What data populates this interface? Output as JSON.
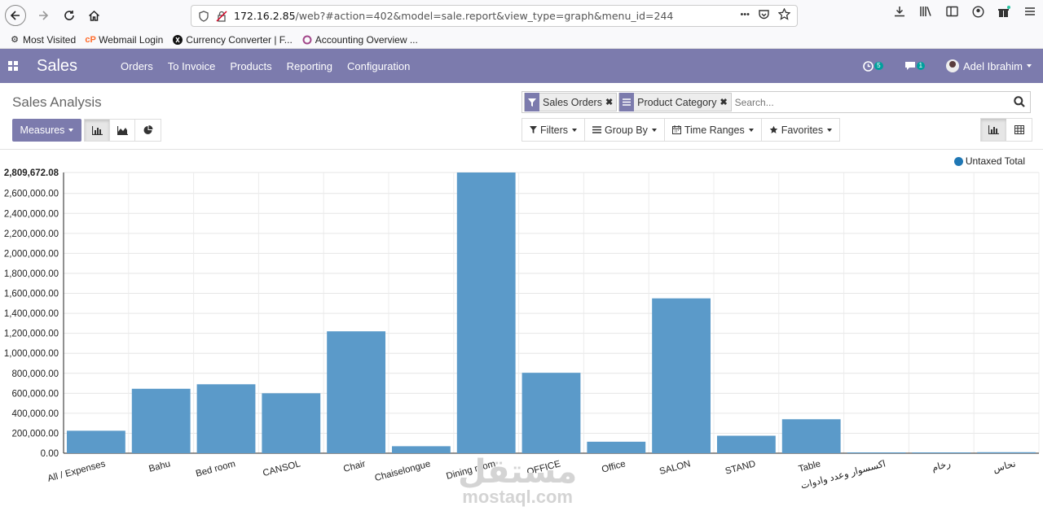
{
  "browser": {
    "url_host": "172.16.2.85",
    "url_path": "/web?#action=402&model=sale.report&view_type=graph&menu_id=244",
    "url_more": "•••",
    "bookmarks": [
      {
        "label": "Most Visited",
        "icon": "gear-icon"
      },
      {
        "label": "Webmail Login",
        "icon": "cpanel-icon"
      },
      {
        "label": "Currency Converter | F...",
        "icon": "xe-icon"
      },
      {
        "label": "Accounting Overview ...",
        "icon": "odoo-icon"
      }
    ]
  },
  "app": {
    "title": "Sales",
    "menu": [
      "Orders",
      "To Invoice",
      "Products",
      "Reporting",
      "Configuration"
    ],
    "activity_count": "5",
    "message_count": "1",
    "user_name": "Adel Ibrahim"
  },
  "control_panel": {
    "breadcrumb": "Sales Analysis",
    "facets": [
      "Sales Orders",
      "Product Category"
    ],
    "search_placeholder": "Search...",
    "measures_label": "Measures",
    "filters_label": "Filters",
    "groupby_label": "Group By",
    "timeranges_label": "Time Ranges",
    "favorites_label": "Favorites"
  },
  "colors": {
    "brand": "#7c7bad",
    "bar": "#5b9ac9",
    "legend_dot": "#1f77b4"
  },
  "chart_data": {
    "type": "bar",
    "categories": [
      "All / Expenses",
      "Bahu",
      "Bed room",
      "CANSOL",
      "Chair",
      "Chaiselongue",
      "Dining room",
      "OFFICE",
      "Office",
      "SALON",
      "STAND",
      "Table",
      "اكسسوار وعدد وادوات",
      "رخام",
      "نحاس"
    ],
    "series": [
      {
        "name": "Untaxed Total",
        "values": [
          225000,
          645000,
          690000,
          600000,
          1220000,
          70000,
          2809672.08,
          805000,
          115000,
          1550000,
          175000,
          340000,
          8000,
          6000,
          10000
        ]
      }
    ],
    "ylim": [
      0,
      2809672.08
    ],
    "yticks": [
      "0.00",
      "200,000.00",
      "400,000.00",
      "600,000.00",
      "800,000.00",
      "1,000,000.00",
      "1,200,000.00",
      "1,400,000.00",
      "1,600,000.00",
      "1,800,000.00",
      "2,000,000.00",
      "2,200,000.00",
      "2,400,000.00",
      "2,600,000.00"
    ],
    "ymax_label": "2,809,672.08",
    "legend": "top-right",
    "grid": true
  },
  "watermark": {
    "arabic": "مستقل",
    "latin": "mostaql.com"
  }
}
